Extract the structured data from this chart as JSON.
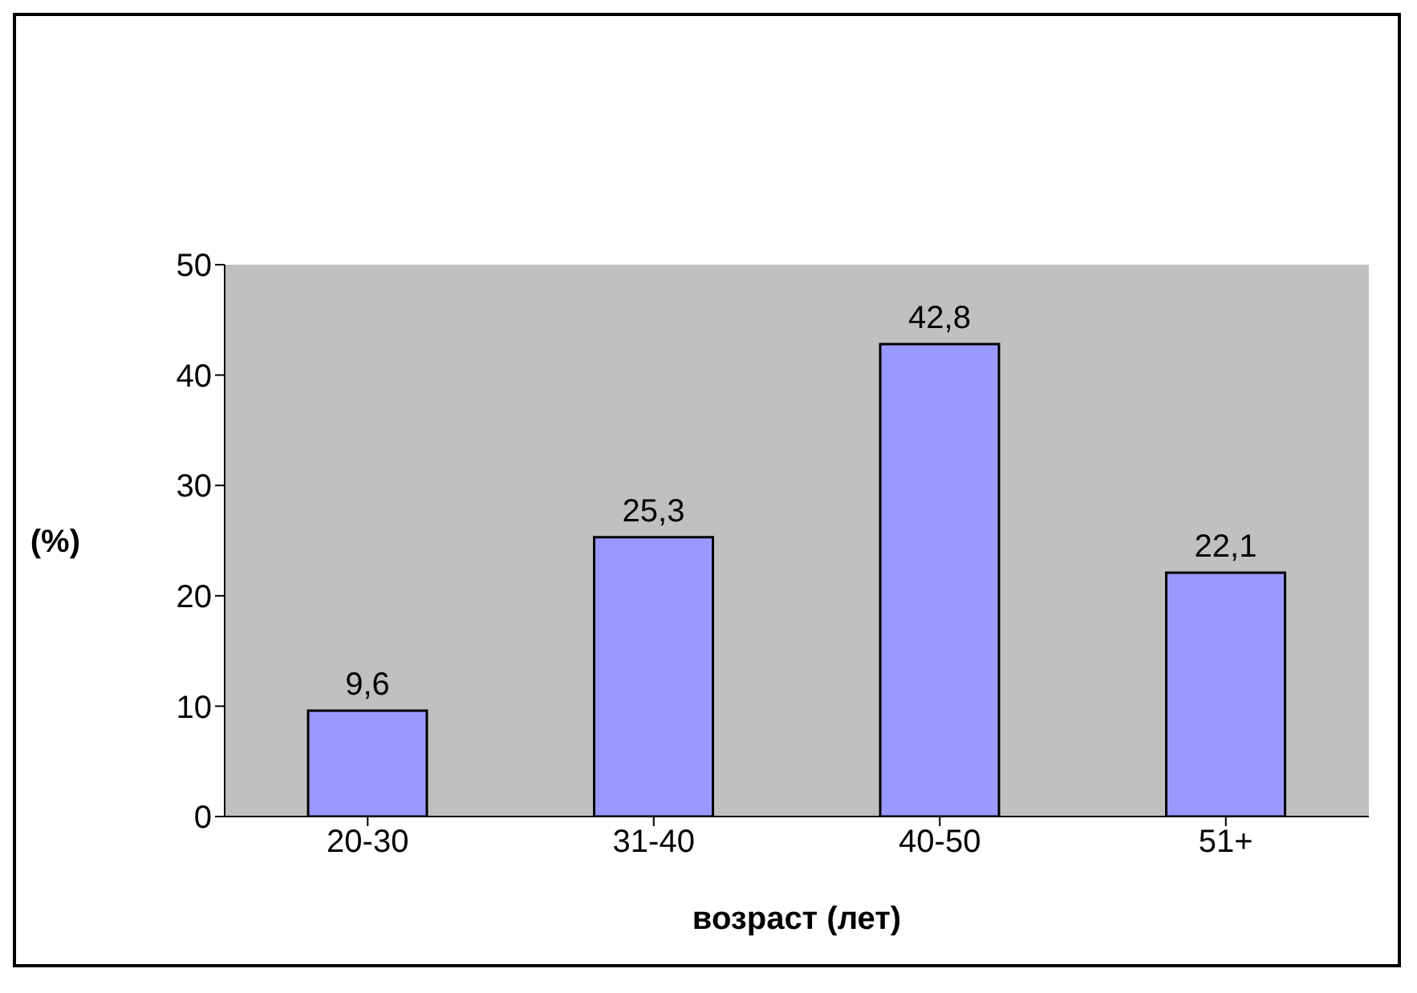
{
  "chart_data": {
    "type": "bar",
    "xlabel": "возраст (лет)",
    "ylabel": "(%)",
    "categories": [
      "20-30",
      "31-40",
      "40-50",
      "51+"
    ],
    "values": [
      9.6,
      25.3,
      42.8,
      22.1
    ],
    "value_labels": [
      "9,6",
      "25,3",
      "42,8",
      "22,1"
    ],
    "color": "#9999ff",
    "ylim": [
      0,
      50
    ],
    "yticks": [
      0,
      10,
      20,
      30,
      40,
      50
    ]
  }
}
